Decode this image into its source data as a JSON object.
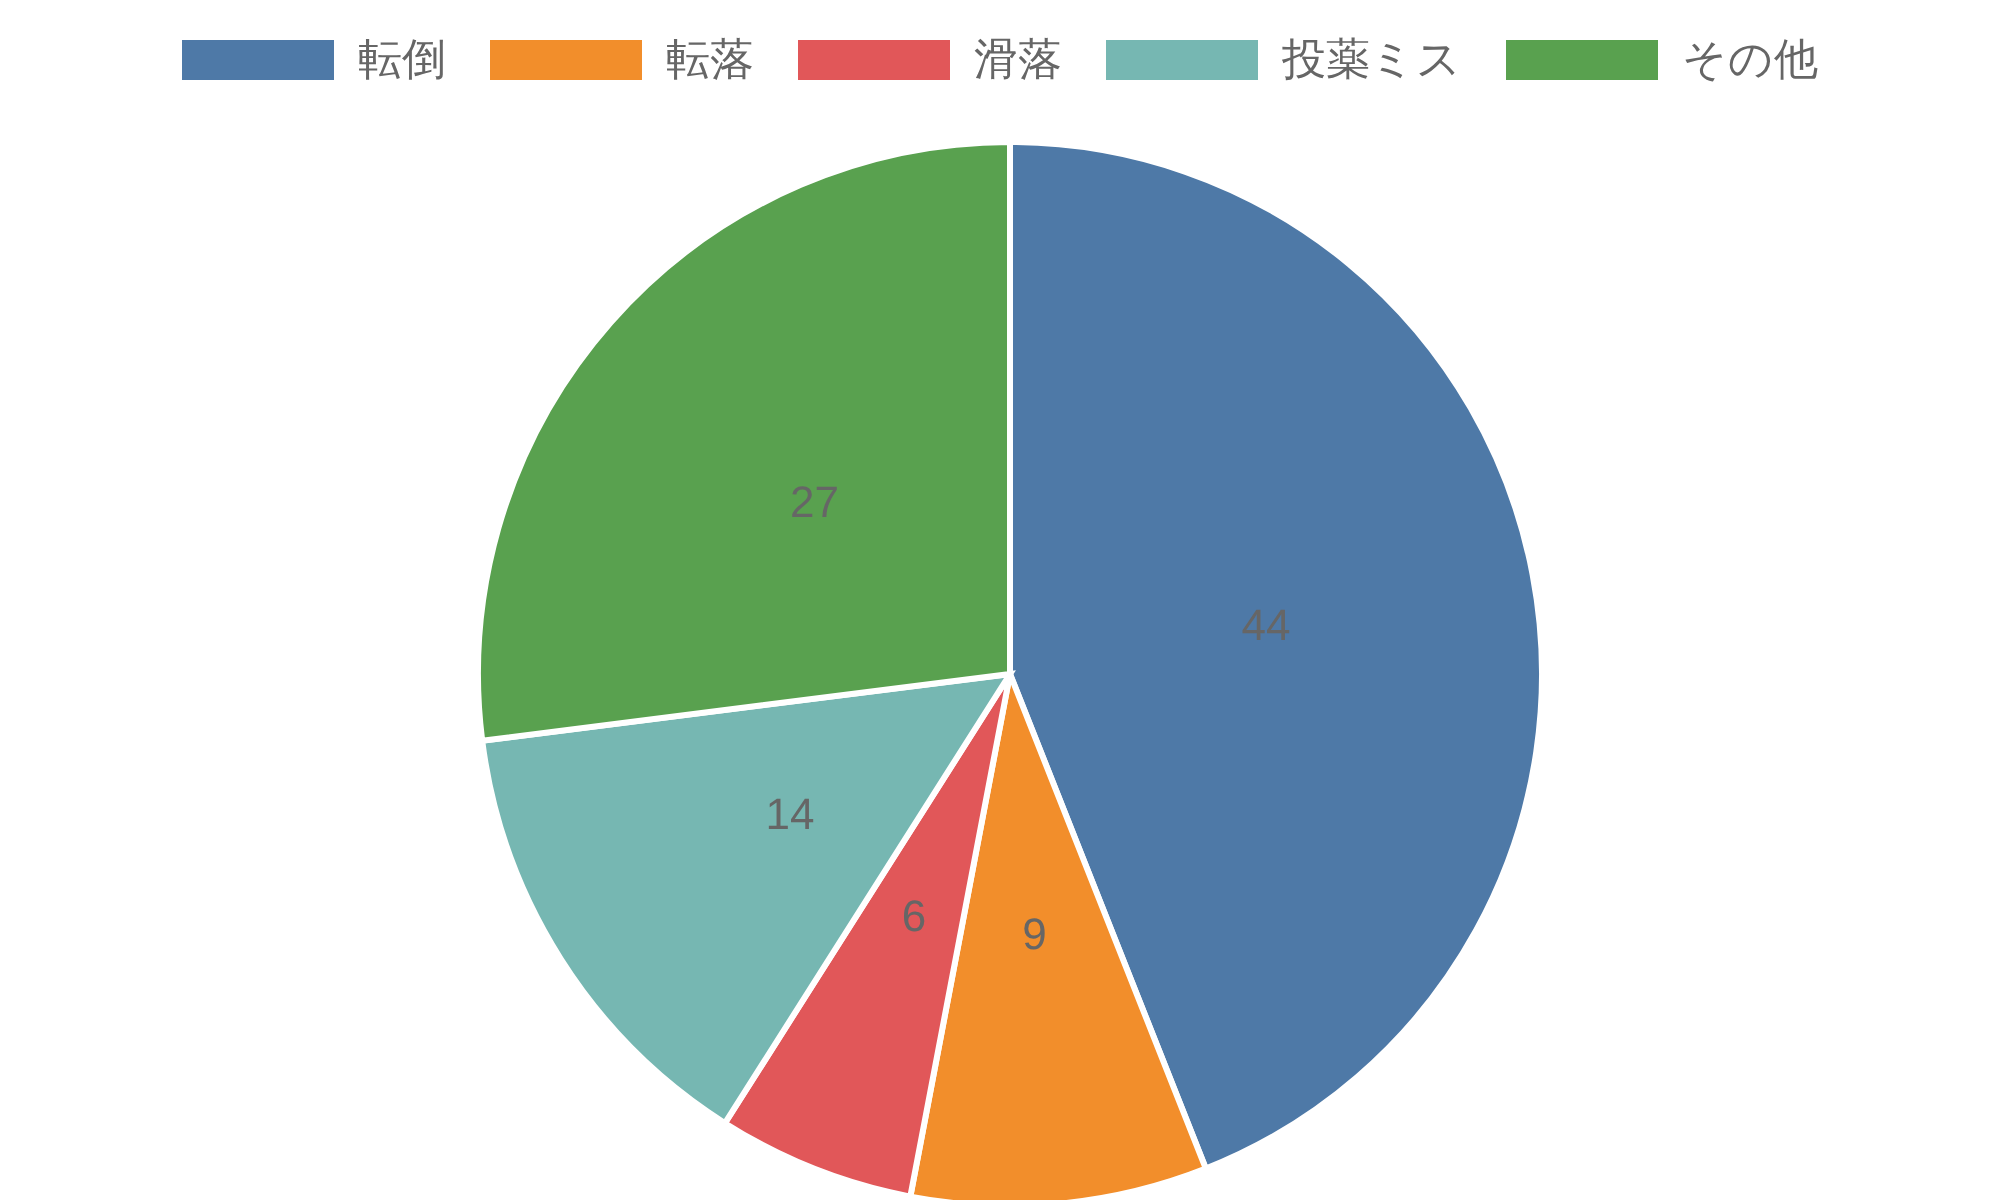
{
  "chart_data": {
    "type": "pie",
    "categories": [
      "転倒",
      "転落",
      "滑落",
      "投薬ミス",
      "その他"
    ],
    "values": [
      44,
      9,
      6,
      14,
      27
    ],
    "colors": [
      "#4e79a7",
      "#f28e2b",
      "#e15759",
      "#76b7b2",
      "#59a14f"
    ],
    "data_labels": true,
    "legend": "top"
  }
}
